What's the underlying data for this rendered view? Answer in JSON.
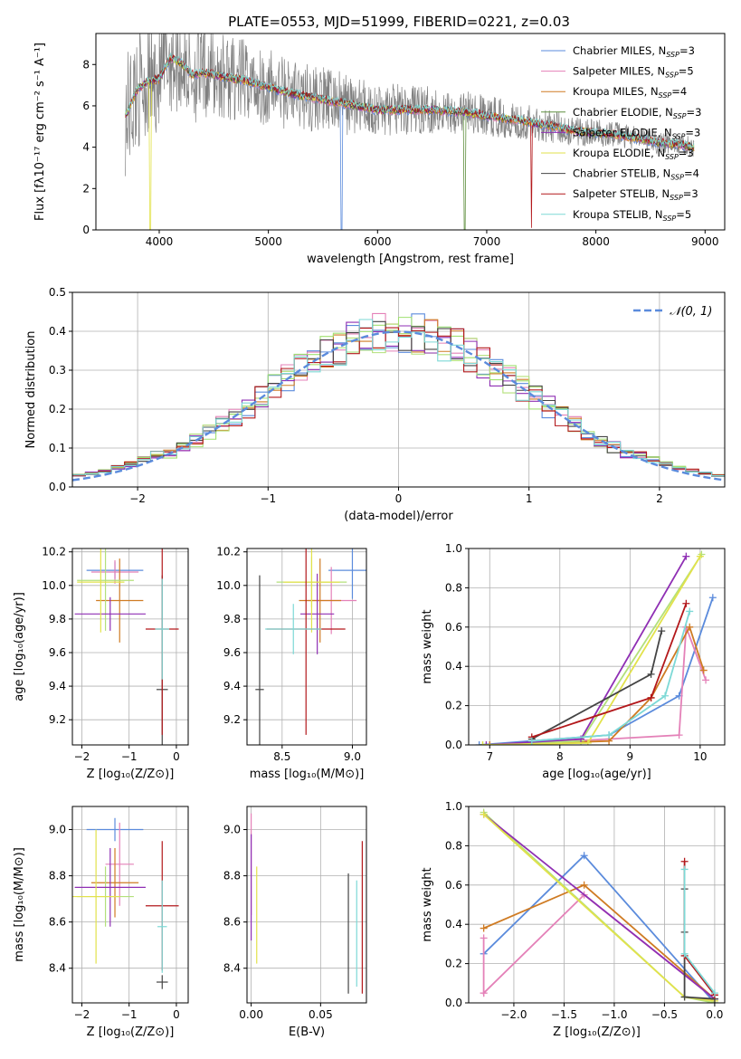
{
  "figure_title": "PLATE=0553, MJD=51999, FIBERID=0221, z=0.03",
  "chart_data": [
    {
      "id": "spectrum",
      "type": "line",
      "xlabel": "wavelength [Angstrom, rest frame]",
      "ylabel": "Flux [fλ10⁻¹⁷ erg cm⁻² s⁻¹ A⁻¹]",
      "xlim": [
        3420,
        9180
      ],
      "ylim": [
        0,
        9.5
      ],
      "xticks": [
        4000,
        5000,
        6000,
        7000,
        8000,
        9000
      ],
      "yticks": [
        0,
        2,
        4,
        6,
        8
      ],
      "grid": false,
      "legend_position": "top-right",
      "continuum": {
        "x": [
          3700,
          3800,
          3900,
          4000,
          4100,
          4200,
          4300,
          4400,
          4500,
          4600,
          4800,
          5000,
          5200,
          5500,
          5800,
          6000,
          6300,
          6500,
          6800,
          7000,
          7300,
          7500,
          7800,
          8000,
          8200,
          8400,
          8600,
          8800,
          8900
        ],
        "y": [
          5.6,
          6.8,
          7.2,
          7.3,
          8.3,
          8.1,
          7.5,
          7.6,
          7.5,
          7.4,
          7.2,
          6.9,
          6.6,
          6.3,
          6.0,
          5.8,
          5.8,
          5.8,
          5.7,
          5.5,
          5.3,
          5.1,
          4.8,
          4.7,
          4.6,
          4.4,
          4.2,
          4.1,
          4.0
        ]
      },
      "data_scatter": [
        3.0,
        2.5,
        2.0,
        1.6,
        1.2,
        1.0,
        0.8,
        0.6,
        0.5
      ],
      "telluric_dips": [
        {
          "x": 3920,
          "depth": 0.0,
          "series": "Kroupa ELODIE"
        },
        {
          "x": 5670,
          "depth": 0.0,
          "series": "Chabrier MILES"
        },
        {
          "x": 6800,
          "depth": 0.0,
          "series": "Chabrier ELODIE"
        },
        {
          "x": 7410,
          "depth": 0.1,
          "series": "Salpeter STELIB"
        }
      ],
      "series": [
        {
          "name": "Chabrier MILES, N",
          "sub": "SSP",
          "suffix": "=3",
          "color": "#5b8bdc"
        },
        {
          "name": "Salpeter MILES, N",
          "sub": "SSP",
          "suffix": "=5",
          "color": "#e481b8"
        },
        {
          "name": "Kroupa MILES, N",
          "sub": "SSP",
          "suffix": "=4",
          "color": "#cf7b23"
        },
        {
          "name": "Chabrier ELODIE, N",
          "sub": "SSP",
          "suffix": "=3",
          "color": "#5f8f3e"
        },
        {
          "name": "Salpeter ELODIE, N",
          "sub": "SSP",
          "suffix": "=3",
          "color": "#8f2fb4"
        },
        {
          "name": "Kroupa ELODIE, N",
          "sub": "SSP",
          "suffix": "=3",
          "color": "#e2e24b"
        },
        {
          "name": "Chabrier STELIB, N",
          "sub": "SSP",
          "suffix": "=4",
          "color": "#444444"
        },
        {
          "name": "Salpeter STELIB, N",
          "sub": "SSP",
          "suffix": "=3",
          "color": "#b3181b"
        },
        {
          "name": "Kroupa STELIB, N",
          "sub": "SSP",
          "suffix": "=5",
          "color": "#7dd9d6"
        }
      ],
      "data_color": "#808080"
    },
    {
      "id": "residuals",
      "type": "line",
      "xlabel": "(data-model)/error",
      "ylabel": "Normed distribution",
      "xlim": [
        -2.5,
        2.5
      ],
      "ylim": [
        0,
        0.5
      ],
      "xticks": [
        -2,
        -1,
        0,
        1,
        2
      ],
      "yticks": [
        0.0,
        0.1,
        0.2,
        0.3,
        0.4,
        0.5
      ],
      "grid": true,
      "legend_position": "top-right",
      "gaussian_label": "𝒩(0, 1)",
      "gaussian_color": "#5b8bdc",
      "bin_width": 0.1,
      "hist_colors": [
        "#5b8bdc",
        "#e481b8",
        "#cf7b23",
        "#b3e07a",
        "#8f2fb4",
        "#a0e070",
        "#444444",
        "#b3181b",
        "#7dd9d6"
      ]
    },
    {
      "id": "age_vs_Z",
      "type": "scatter",
      "xlabel": "Z [log₁₀(Z/Z⊙)]",
      "ylabel": "age  [log₁₀(age/yr)]",
      "xlim": [
        -2.2,
        0.25
      ],
      "ylim": [
        9.05,
        10.22
      ],
      "xticks": [
        -2,
        -1,
        0
      ],
      "yticks": [
        9.2,
        9.4,
        9.6,
        9.8,
        10.0,
        10.2
      ],
      "grid": true,
      "errorbars": [
        {
          "x": -1.3,
          "y": 10.09,
          "xerr": 0.6,
          "yerr": 0.05,
          "color": "#5b8bdc"
        },
        {
          "x": -1.3,
          "y": 10.08,
          "xerr": 0.5,
          "yerr": 0.07,
          "color": "#e481b8"
        },
        {
          "x": -1.2,
          "y": 9.91,
          "xerr": 0.5,
          "yerr": 0.25,
          "color": "#cf7b23"
        },
        {
          "x": -1.5,
          "y": 10.03,
          "xerr": 0.6,
          "yerr": 0.3,
          "color": "#b3e07a"
        },
        {
          "x": -1.4,
          "y": 9.83,
          "xerr": 0.75,
          "yerr": 0.1,
          "color": "#8f2fb4"
        },
        {
          "x": -1.6,
          "y": 10.02,
          "xerr": 0.5,
          "yerr": 0.3,
          "color": "#e2e24b"
        },
        {
          "x": -0.3,
          "y": 9.38,
          "xerr": 0.12,
          "yerr": 0.68,
          "color": "#444444"
        },
        {
          "x": -0.3,
          "y": 9.74,
          "xerr": 0.35,
          "yerr": 0.63,
          "color": "#b3181b"
        },
        {
          "x": -0.3,
          "y": 9.74,
          "xerr": 0.15,
          "yerr": 0.3,
          "color": "#7dd9d6"
        }
      ]
    },
    {
      "id": "age_vs_mass",
      "type": "scatter",
      "xlabel": "mass [log₁₀(M/M⊙)]",
      "ylabel": "",
      "xlim": [
        8.25,
        9.1
      ],
      "ylim": [
        9.05,
        10.22
      ],
      "xticks": [
        8.5,
        9.0
      ],
      "yticks": [
        9.2,
        9.4,
        9.6,
        9.8,
        10.0,
        10.2
      ],
      "grid": true,
      "errorbars": [
        {
          "x": 9.0,
          "y": 10.09,
          "xerr": 0.17,
          "yerr": 0.17,
          "color": "#5b8bdc"
        },
        {
          "x": 8.85,
          "y": 9.91,
          "xerr": 0.18,
          "yerr": 0.2,
          "color": "#e481b8"
        },
        {
          "x": 8.77,
          "y": 9.91,
          "xerr": 0.15,
          "yerr": 0.25,
          "color": "#cf7b23"
        },
        {
          "x": 8.71,
          "y": 10.02,
          "xerr": 0.25,
          "yerr": 0.15,
          "color": "#b3e07a"
        },
        {
          "x": 8.75,
          "y": 9.83,
          "xerr": 0.12,
          "yerr": 0.24,
          "color": "#8f2fb4"
        },
        {
          "x": 8.71,
          "y": 10.02,
          "xerr": 0.2,
          "yerr": 0.3,
          "color": "#e2e24b"
        },
        {
          "x": 8.34,
          "y": 9.38,
          "xerr": 0.03,
          "yerr": 0.68,
          "color": "#444444"
        },
        {
          "x": 8.67,
          "y": 9.74,
          "xerr": 0.28,
          "yerr": 0.63,
          "color": "#b3181b"
        },
        {
          "x": 8.58,
          "y": 9.74,
          "xerr": 0.2,
          "yerr": 0.15,
          "color": "#7dd9d6"
        }
      ]
    },
    {
      "id": "weight_vs_age",
      "type": "line",
      "xlabel": "age  [log₁₀(age/yr)]",
      "ylabel": "mass weight",
      "xlim": [
        6.7,
        10.35
      ],
      "ylim": [
        0,
        1.0
      ],
      "xticks": [
        7,
        8,
        9,
        10
      ],
      "yticks": [
        0.0,
        0.2,
        0.4,
        0.6,
        0.8,
        1.0
      ],
      "grid": true,
      "series": [
        {
          "color": "#5b8bdc",
          "x": [
            6.85,
            8.7,
            9.7,
            10.18
          ],
          "y": [
            0.0,
            0.05,
            0.25,
            0.75
          ]
        },
        {
          "color": "#e481b8",
          "x": [
            7.0,
            8.7,
            9.7,
            9.8,
            10.08
          ],
          "y": [
            0.0,
            0.03,
            0.05,
            0.6,
            0.33
          ]
        },
        {
          "color": "#cf7b23",
          "x": [
            7.0,
            8.7,
            9.3,
            9.85,
            10.05
          ],
          "y": [
            0.0,
            0.02,
            0.24,
            0.6,
            0.38
          ]
        },
        {
          "color": "#b3e07a",
          "x": [
            6.9,
            8.3,
            10.02
          ],
          "y": [
            0.0,
            0.02,
            0.97
          ]
        },
        {
          "color": "#8f2fb4",
          "x": [
            6.95,
            8.3,
            9.8
          ],
          "y": [
            0.0,
            0.03,
            0.96
          ]
        },
        {
          "color": "#e2e24b",
          "x": [
            6.9,
            8.4,
            10.0
          ],
          "y": [
            0.0,
            0.01,
            0.96
          ]
        },
        {
          "color": "#444444",
          "x": [
            7.6,
            9.3,
            9.45
          ],
          "y": [
            0.03,
            0.36,
            0.58
          ]
        },
        {
          "color": "#b3181b",
          "x": [
            7.6,
            9.3,
            9.8
          ],
          "y": [
            0.04,
            0.24,
            0.72
          ]
        },
        {
          "color": "#7dd9d6",
          "x": [
            7.6,
            8.7,
            9.5,
            9.85
          ],
          "y": [
            0.02,
            0.05,
            0.25,
            0.68
          ]
        }
      ]
    },
    {
      "id": "mass_vs_Z",
      "type": "scatter",
      "xlabel": "Z [log₁₀(Z/Z⊙)]",
      "ylabel": "mass [log₁₀(M/M⊙)]",
      "xlim": [
        -2.2,
        0.25
      ],
      "ylim": [
        8.25,
        9.1
      ],
      "xticks": [
        -2,
        -1,
        0
      ],
      "yticks": [
        8.4,
        8.6,
        8.8,
        9.0
      ],
      "grid": true,
      "errorbars": [
        {
          "x": -1.3,
          "y": 9.0,
          "xerr": 0.6,
          "yerr": 0.05,
          "color": "#5b8bdc"
        },
        {
          "x": -1.2,
          "y": 8.85,
          "xerr": 0.3,
          "yerr": 0.18,
          "color": "#e481b8"
        },
        {
          "x": -1.3,
          "y": 8.77,
          "xerr": 0.5,
          "yerr": 0.15,
          "color": "#cf7b23"
        },
        {
          "x": -1.5,
          "y": 8.71,
          "xerr": 0.6,
          "yerr": 0.13,
          "color": "#b3e07a"
        },
        {
          "x": -1.4,
          "y": 8.75,
          "xerr": 0.75,
          "yerr": 0.17,
          "color": "#8f2fb4"
        },
        {
          "x": -1.7,
          "y": 8.71,
          "xerr": 0.5,
          "yerr": 0.29,
          "color": "#e2e24b"
        },
        {
          "x": -0.3,
          "y": 8.34,
          "xerr": 0.12,
          "yerr": 0.03,
          "color": "#444444"
        },
        {
          "x": -0.3,
          "y": 8.67,
          "xerr": 0.35,
          "yerr": 0.28,
          "color": "#b3181b"
        },
        {
          "x": -0.3,
          "y": 8.58,
          "xerr": 0.1,
          "yerr": 0.2,
          "color": "#7dd9d6"
        }
      ]
    },
    {
      "id": "mass_vs_ebv",
      "type": "scatter",
      "xlabel": "E(B-V)",
      "ylabel": "",
      "xlim": [
        -0.003,
        0.083
      ],
      "ylim": [
        8.25,
        9.1
      ],
      "xticks": [
        0.0,
        0.05
      ],
      "yticks": [
        8.4,
        8.6,
        8.8,
        9.0
      ],
      "grid": true,
      "errorbars": [
        {
          "x": 0.0,
          "y": 8.85,
          "xerr": 0.0,
          "yerr": 0.22,
          "color": "#e481b8"
        },
        {
          "x": 0.0,
          "y": 8.75,
          "xerr": 0.0,
          "yerr": 0.23,
          "color": "#8f2fb4"
        },
        {
          "x": 0.004,
          "y": 8.63,
          "xerr": 0.0,
          "yerr": 0.21,
          "color": "#e2e24b"
        },
        {
          "x": 0.07,
          "y": 8.55,
          "xerr": 0.0,
          "yerr": 0.26,
          "color": "#444444"
        },
        {
          "x": 0.08,
          "y": 8.62,
          "xerr": 0.0,
          "yerr": 0.33,
          "color": "#b3181b"
        },
        {
          "x": 0.076,
          "y": 8.55,
          "xerr": 0.0,
          "yerr": 0.23,
          "color": "#7dd9d6"
        }
      ]
    },
    {
      "id": "weight_vs_Z",
      "type": "line",
      "xlabel": "Z [log₁₀(Z/Z⊙)]",
      "ylabel": "mass weight",
      "xlim": [
        -2.45,
        0.1
      ],
      "ylim": [
        0,
        1.0
      ],
      "xticks": [
        -2.0,
        -1.5,
        -1.0,
        -0.5,
        0.0
      ],
      "yticks": [
        0.0,
        0.2,
        0.4,
        0.6,
        0.8,
        1.0
      ],
      "grid": true,
      "series": [
        {
          "color": "#5b8bdc",
          "x": [
            -2.3,
            -1.3,
            0.0
          ],
          "y": [
            0.25,
            0.75,
            0.0
          ]
        },
        {
          "color": "#e481b8",
          "x": [
            -2.3,
            -2.3,
            -2.3,
            -1.3,
            0.0
          ],
          "y": [
            0.33,
            0.05,
            0.05,
            0.55,
            0.02
          ]
        },
        {
          "color": "#cf7b23",
          "x": [
            -2.3,
            -1.3,
            0.0
          ],
          "y": [
            0.38,
            0.6,
            0.02
          ]
        },
        {
          "color": "#b3e07a",
          "x": [
            -2.3,
            -0.3,
            0.0
          ],
          "y": [
            0.97,
            0.03,
            0.0
          ]
        },
        {
          "color": "#8f2fb4",
          "x": [
            -2.3,
            0.0
          ],
          "y": [
            0.96,
            0.02
          ]
        },
        {
          "color": "#e2e24b",
          "x": [
            -2.3,
            -0.3,
            0.0
          ],
          "y": [
            0.96,
            0.03,
            0.01
          ]
        },
        {
          "color": "#444444",
          "x": [
            -0.3,
            -0.3,
            -0.3,
            0.0
          ],
          "y": [
            0.58,
            0.36,
            0.03,
            0.02
          ]
        },
        {
          "color": "#b3181b",
          "x": [
            -0.3,
            -0.3,
            0.0
          ],
          "y": [
            0.72,
            0.24,
            0.04
          ]
        },
        {
          "color": "#7dd9d6",
          "x": [
            -0.3,
            -0.3,
            0.0
          ],
          "y": [
            0.68,
            0.25,
            0.05
          ]
        }
      ]
    }
  ]
}
